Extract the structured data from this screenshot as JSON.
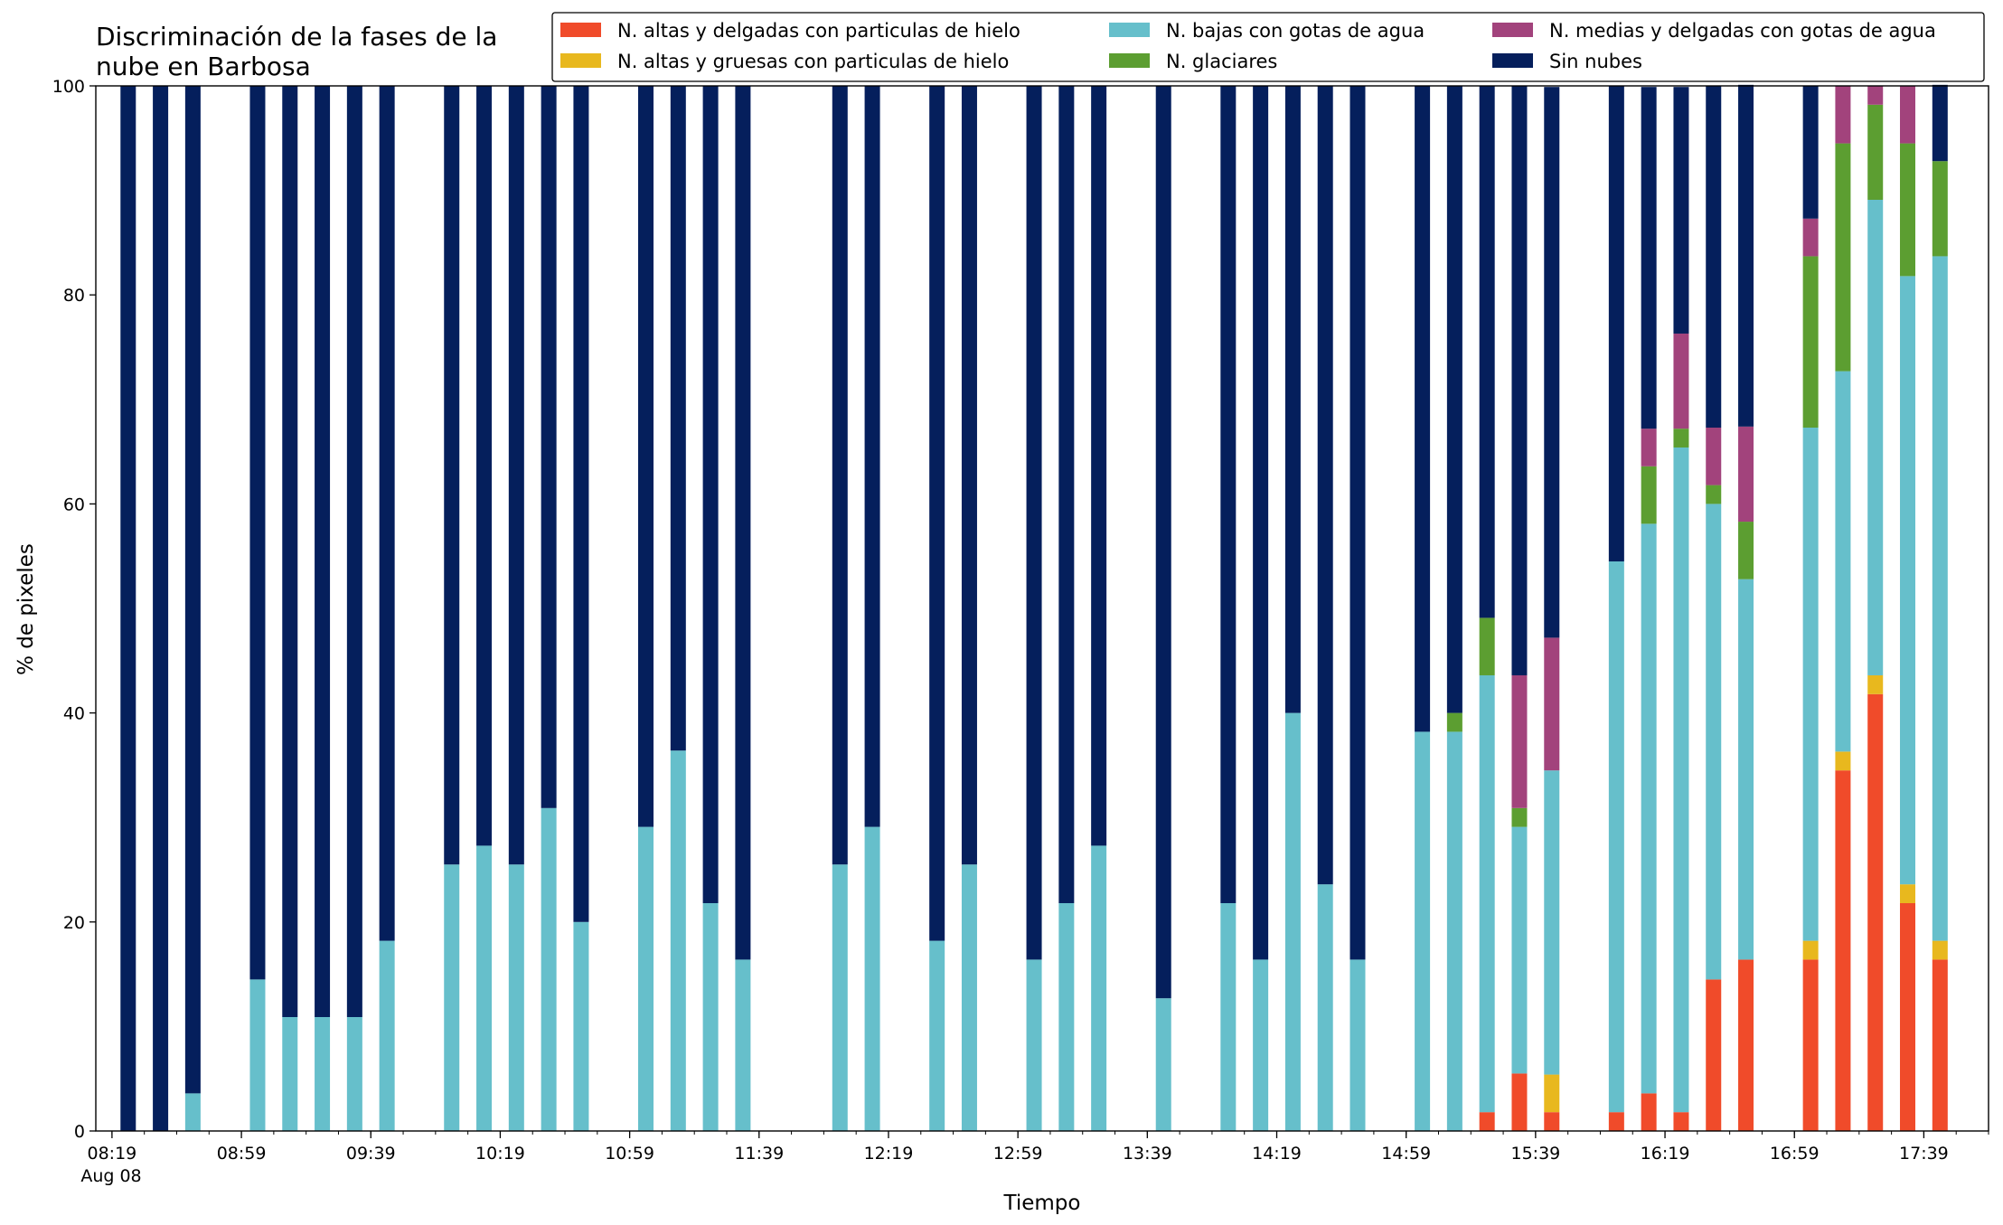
{
  "chart_data": {
    "type": "bar",
    "stacked": true,
    "title_lines": [
      "Discriminación de la fases de la",
      "nube en Barbosa"
    ],
    "xlabel": "Tiempo",
    "ylabel": "% de pixeles",
    "ylim": [
      0,
      100
    ],
    "yticks": [
      0,
      20,
      40,
      60,
      80,
      100
    ],
    "xlim": [
      "08:14",
      "17:59"
    ],
    "xtick_labels": [
      "08:19",
      "08:59",
      "09:39",
      "10:19",
      "10:59",
      "11:39",
      "12:19",
      "12:59",
      "13:39",
      "14:19",
      "14:59",
      "15:39",
      "16:19",
      "16:59",
      "17:39"
    ],
    "xtick_sublabel": "Aug 08",
    "legend_position": "upper-right",
    "legend_columns": 3,
    "x": [
      "08:24",
      "08:34",
      "08:44",
      "09:04",
      "09:14",
      "09:24",
      "09:34",
      "09:44",
      "10:04",
      "10:14",
      "10:24",
      "10:34",
      "10:44",
      "11:04",
      "11:14",
      "11:24",
      "11:34",
      "12:04",
      "12:14",
      "12:34",
      "12:44",
      "13:04",
      "13:14",
      "13:24",
      "13:44",
      "14:04",
      "14:14",
      "14:24",
      "14:34",
      "14:44",
      "15:04",
      "15:14",
      "15:24",
      "15:34",
      "15:44",
      "16:04",
      "16:14",
      "16:24",
      "16:34",
      "16:44",
      "17:04",
      "17:14",
      "17:24",
      "17:34",
      "17:44"
    ],
    "series": [
      {
        "name": "N. altas y delgadas con particulas de hielo",
        "color": "#f04b2a",
        "values": [
          0,
          0,
          0,
          0,
          0,
          0,
          0,
          0,
          0,
          0,
          0,
          0,
          0,
          0,
          0,
          0,
          0,
          0,
          0,
          0,
          0,
          0,
          0,
          0,
          0,
          0,
          0,
          0,
          0,
          0,
          0,
          0,
          1.8,
          5.5,
          1.8,
          1.8,
          3.6,
          1.8,
          14.5,
          16.4,
          16.4,
          34.5,
          41.8,
          21.8,
          16.4
        ]
      },
      {
        "name": "N. altas y gruesas con particulas de hielo",
        "color": "#e8b81e",
        "values": [
          0,
          0,
          0,
          0,
          0,
          0,
          0,
          0,
          0,
          0,
          0,
          0,
          0,
          0,
          0,
          0,
          0,
          0,
          0,
          0,
          0,
          0,
          0,
          0,
          0,
          0,
          0,
          0,
          0,
          0,
          0,
          0,
          0,
          0,
          3.6,
          0,
          0,
          0,
          0,
          0,
          1.8,
          1.8,
          1.8,
          1.8,
          1.8
        ]
      },
      {
        "name": "N. bajas con gotas de agua",
        "color": "#66bfcb",
        "values": [
          0,
          0,
          3.6,
          14.5,
          10.9,
          10.9,
          10.9,
          18.2,
          25.5,
          27.3,
          25.5,
          30.9,
          20.0,
          29.1,
          36.4,
          21.8,
          16.4,
          25.5,
          29.1,
          18.2,
          25.5,
          16.4,
          21.8,
          27.3,
          12.7,
          21.8,
          16.4,
          40.0,
          23.6,
          16.4,
          38.2,
          38.2,
          41.8,
          23.6,
          29.1,
          52.7,
          54.5,
          63.6,
          45.5,
          36.4,
          49.1,
          36.4,
          45.5,
          58.2,
          65.5
        ]
      },
      {
        "name": "N. glaciares",
        "color": "#5c9e31",
        "values": [
          0,
          0,
          0,
          0,
          0,
          0,
          0,
          0,
          0,
          0,
          0,
          0,
          0,
          0,
          0,
          0,
          0,
          0,
          0,
          0,
          0,
          0,
          0,
          0,
          0,
          0,
          0,
          0,
          0,
          0,
          0,
          1.8,
          5.5,
          1.8,
          0,
          0,
          5.5,
          1.8,
          1.8,
          5.5,
          16.4,
          21.8,
          9.1,
          12.7,
          9.1
        ]
      },
      {
        "name": "N. medias y delgadas con gotas de agua",
        "color": "#a2437c",
        "values": [
          0,
          0,
          0,
          0,
          0,
          0,
          0,
          0,
          0,
          0,
          0,
          0,
          0,
          0,
          0,
          0,
          0,
          0,
          0,
          0,
          0,
          0,
          0,
          0,
          0,
          0,
          0,
          0,
          0,
          0,
          0,
          0,
          0,
          12.7,
          12.7,
          0,
          3.6,
          9.1,
          5.5,
          9.1,
          3.6,
          5.5,
          1.8,
          5.5,
          0
        ]
      },
      {
        "name": "Sin nubes",
        "color": "#051f5c",
        "values": [
          100,
          100,
          96.4,
          85.5,
          89.1,
          89.1,
          89.1,
          81.8,
          74.5,
          72.7,
          74.5,
          69.1,
          80.0,
          70.9,
          63.6,
          78.2,
          83.6,
          74.5,
          70.9,
          81.8,
          74.5,
          83.6,
          78.2,
          72.7,
          87.3,
          78.2,
          83.6,
          60.0,
          76.4,
          83.6,
          61.8,
          60.0,
          50.9,
          56.4,
          52.7,
          45.5,
          32.7,
          23.6,
          32.7,
          32.7,
          12.7,
          0,
          0,
          0,
          7.3
        ]
      }
    ]
  }
}
